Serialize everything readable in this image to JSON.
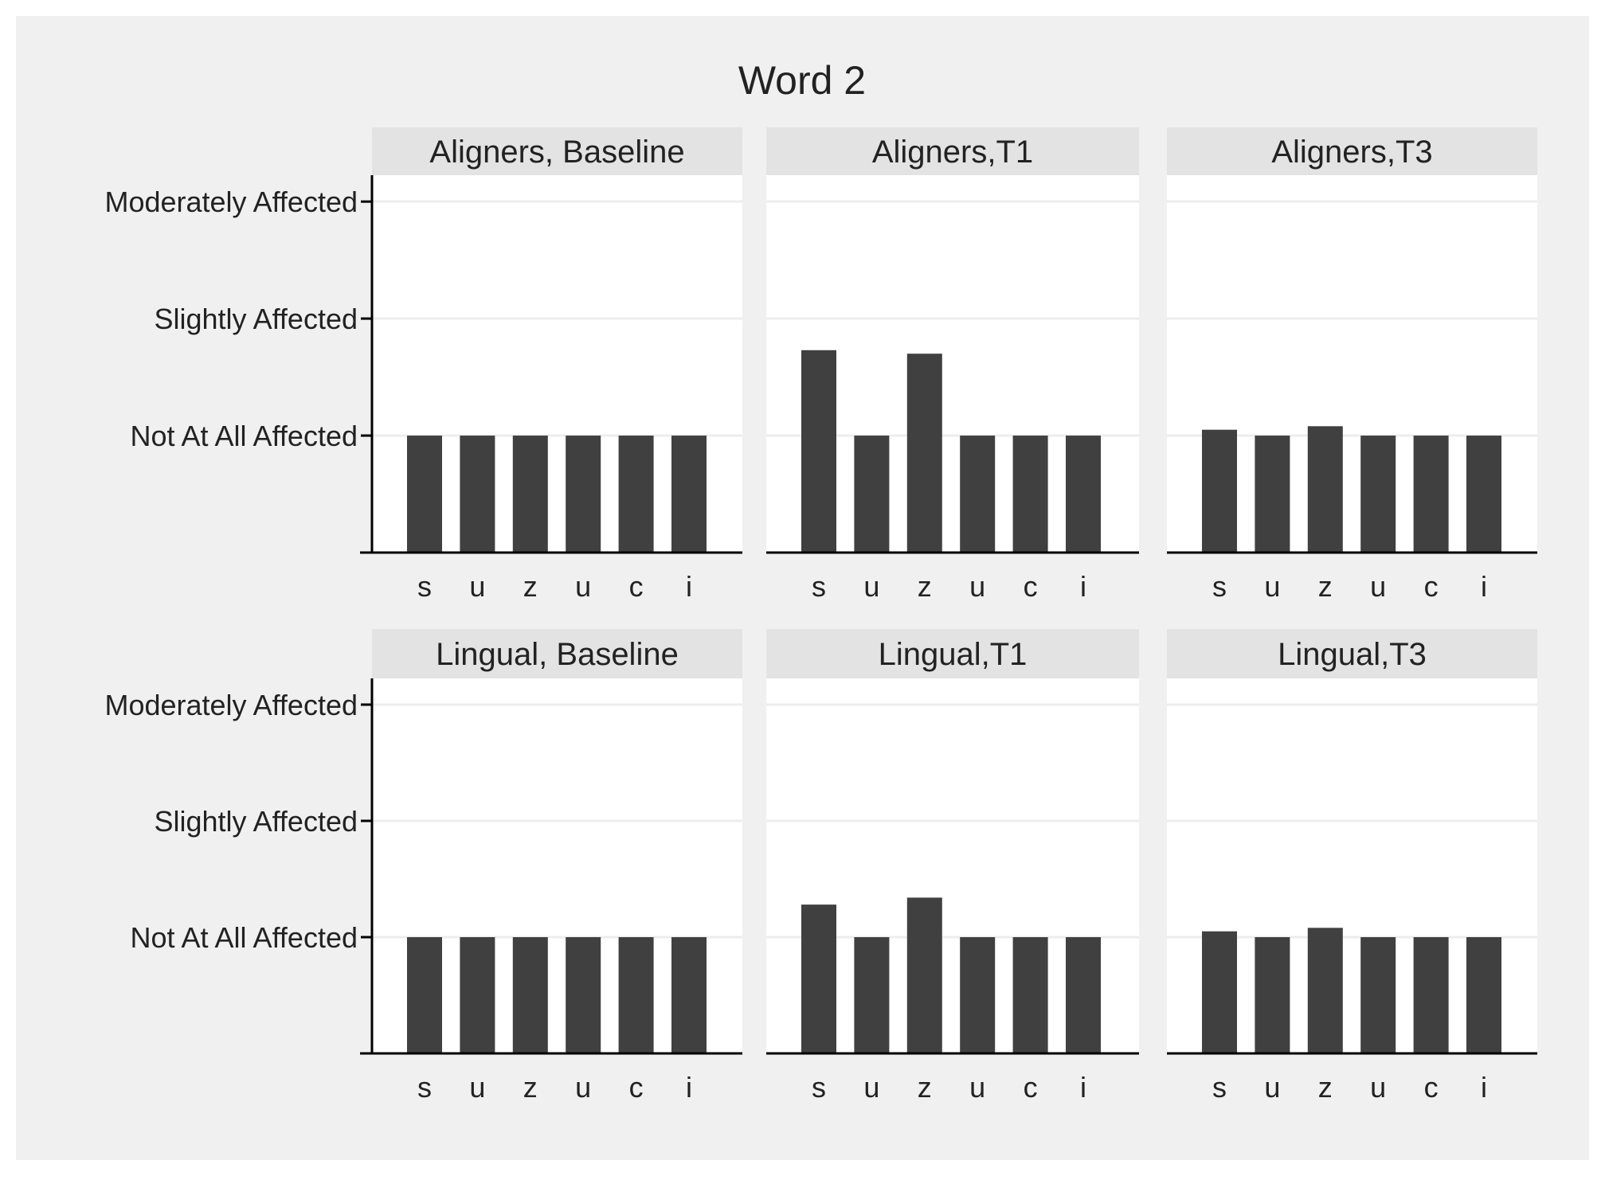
{
  "chart_data": {
    "type": "bar",
    "title": "Word 2",
    "categories": [
      "s",
      "u",
      "z",
      "u",
      "c",
      "i"
    ],
    "y_scale": {
      "ylim": [
        0,
        3
      ],
      "ticks": [
        {
          "value": 1,
          "label": "Not At All Affected"
        },
        {
          "value": 2,
          "label": "Slightly Affected"
        },
        {
          "value": 3,
          "label": "Moderately Affected"
        }
      ]
    },
    "grid": true,
    "panels": [
      {
        "title": "Aligners, Baseline",
        "values": [
          1.0,
          1.0,
          1.0,
          1.0,
          1.0,
          1.0
        ]
      },
      {
        "title": "Aligners,T1",
        "values": [
          1.73,
          1.0,
          1.7,
          1.0,
          1.0,
          1.0
        ]
      },
      {
        "title": "Aligners,T3",
        "values": [
          1.05,
          1.0,
          1.08,
          1.0,
          1.0,
          1.0
        ]
      },
      {
        "title": "Lingual, Baseline",
        "values": [
          1.0,
          1.0,
          1.0,
          1.0,
          1.0,
          1.0
        ]
      },
      {
        "title": "Lingual,T1",
        "values": [
          1.28,
          1.0,
          1.34,
          1.0,
          1.0,
          1.0
        ]
      },
      {
        "title": "Lingual,T3",
        "values": [
          1.05,
          1.0,
          1.08,
          1.0,
          1.0,
          1.0
        ]
      }
    ],
    "colors": {
      "bar": "#404040",
      "strip": "#e3e3e3",
      "panel": "#ffffff",
      "background": "#f0f0f0",
      "grid": "#ededed",
      "axis": "#000000",
      "text": "#222222"
    }
  }
}
